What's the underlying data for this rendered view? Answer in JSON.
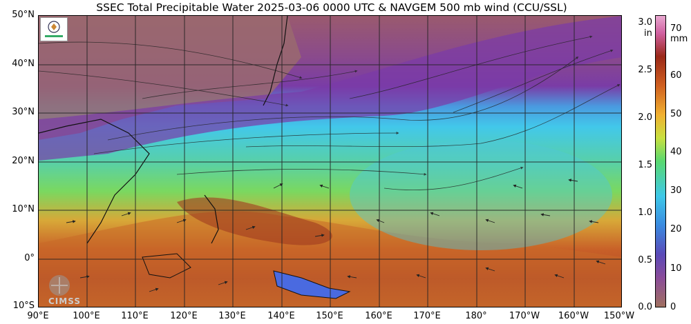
{
  "title": "SSEC Total Precipitable Water  2025-03-06 0000 UTC & NAVGEM 500 mb wind (CCU/SSL)",
  "lat_labels": [
    "50°N",
    "40°N",
    "30°N",
    "20°N",
    "10°N",
    "0°",
    "10°S"
  ],
  "lon_labels": [
    "90°E",
    "100°E",
    "110°E",
    "120°E",
    "130°E",
    "140°E",
    "150°E",
    "160°E",
    "170°E",
    "180°",
    "170°W",
    "160°W",
    "150°W"
  ],
  "colorbar": {
    "unit_in": "in",
    "unit_mm": "mm",
    "ticks_in": [
      "3.0",
      "2.5",
      "2.0",
      "1.5",
      "1.0",
      "0.5",
      "0.0"
    ],
    "ticks_mm": [
      "70",
      "60",
      "50",
      "40",
      "30",
      "20",
      "10",
      "0"
    ]
  },
  "watermark": "CIMSS",
  "colors": {
    "dry": "#a07060",
    "low": "#8a4c9a",
    "mid_low": "#3a8ae0",
    "mid": "#58d870",
    "high": "#f0b030",
    "very_high": "#b04020",
    "extreme": "#d060a0"
  }
}
